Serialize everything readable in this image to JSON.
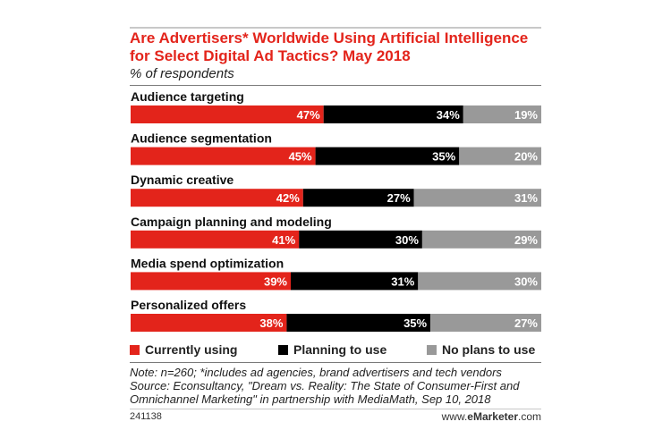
{
  "chart_data": {
    "type": "bar",
    "orientation": "horizontal",
    "stacked": true,
    "title": "Are Advertisers* Worldwide Using Artificial Intelligence for Select Digital Ad Tactics? May 2018",
    "subtitle": "% of respondents",
    "categories": [
      "Audience targeting",
      "Audience segmentation",
      "Dynamic creative",
      "Campaign planning and modeling",
      "Media spend optimization",
      "Personalized offers"
    ],
    "series": [
      {
        "name": "Currently using",
        "color": "#e3241b",
        "label_color": "#ffffff",
        "values": [
          47,
          45,
          42,
          41,
          39,
          38
        ]
      },
      {
        "name": "Planning to use",
        "color": "#000000",
        "label_color": "#ffffff",
        "values": [
          34,
          35,
          27,
          30,
          31,
          35
        ]
      },
      {
        "name": "No plans to use",
        "color": "#999999",
        "label_color": "#ffffff",
        "values": [
          19,
          20,
          31,
          29,
          30,
          27
        ]
      }
    ],
    "value_suffix": "%",
    "xlim": [
      0,
      100
    ],
    "legend_position": "bottom",
    "grid": false
  },
  "notes": {
    "line1": "Note: n=260; *includes ad agencies, brand advertisers and tech vendors",
    "line2": "Source: Econsultancy, \"Dream vs. Reality: The State of Consumer-First and",
    "line3": "Omnichannel Marketing\" in partnership with MediaMath, Sep 10, 2018"
  },
  "footer": {
    "chart_id": "241138",
    "brand_prefix": "www.",
    "brand_bold": "eMarketer",
    "brand_suffix": ".com"
  }
}
